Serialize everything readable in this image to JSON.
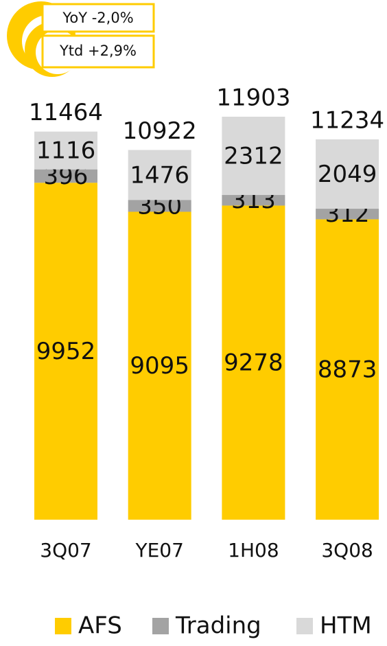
{
  "chart_data": {
    "type": "bar",
    "stacked": true,
    "annotations": [
      "YoY -2,0%",
      "Ytd +2,9%"
    ],
    "categories": [
      "3Q07",
      "YE07",
      "1H08",
      "3Q08"
    ],
    "series": [
      {
        "name": "AFS",
        "color": "#ffcc00",
        "values": [
          9952,
          9095,
          9278,
          8873
        ]
      },
      {
        "name": "Trading",
        "color": "#a3a3a3",
        "values": [
          396,
          350,
          313,
          312
        ]
      },
      {
        "name": "HTM",
        "color": "#d9d9d9",
        "values": [
          1116,
          1476,
          2312,
          2049
        ]
      }
    ],
    "totals": [
      11464,
      10922,
      11903,
      11234
    ],
    "legend": "bottom"
  }
}
